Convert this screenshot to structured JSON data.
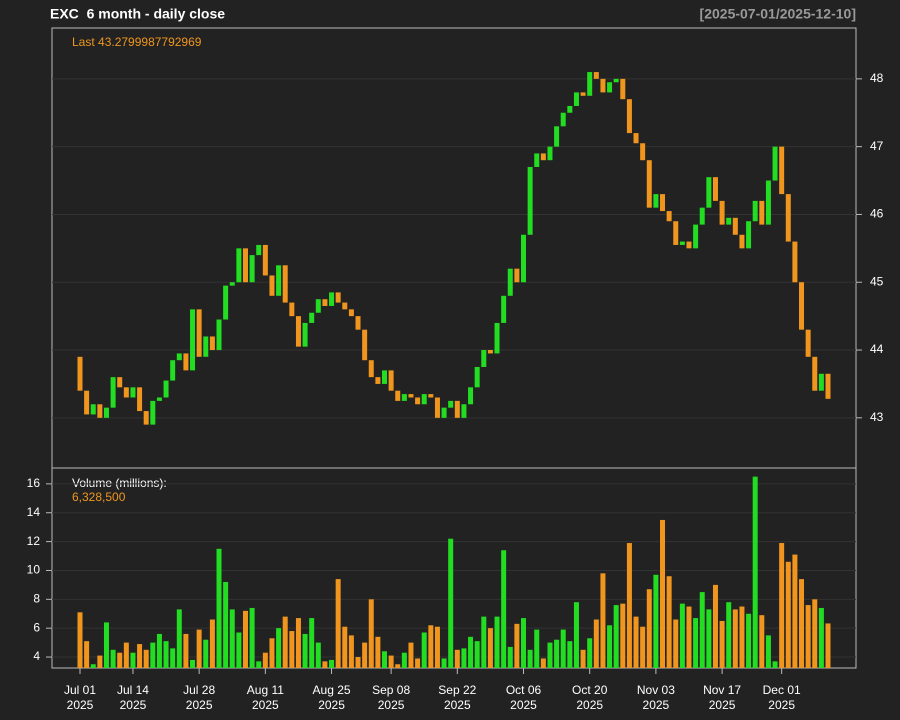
{
  "chart_data": [
    {
      "type": "candlestick",
      "title": "EXC  6 month - daily close",
      "range_label": "[2025-07-01/2025-12-10]",
      "annotation": "Last 43.2799987792969",
      "up_color": "#22dd22",
      "down_color": "#f0961e",
      "x": [
        "2025-07-01",
        "2025-07-02",
        "2025-07-03",
        "2025-07-07",
        "2025-07-08",
        "2025-07-09",
        "2025-07-10",
        "2025-07-11",
        "2025-07-14",
        "2025-07-15",
        "2025-07-16",
        "2025-07-17",
        "2025-07-18",
        "2025-07-21",
        "2025-07-22",
        "2025-07-23",
        "2025-07-24",
        "2025-07-25",
        "2025-07-28",
        "2025-07-29",
        "2025-07-30",
        "2025-07-31",
        "2025-08-01",
        "2025-08-04",
        "2025-08-05",
        "2025-08-06",
        "2025-08-07",
        "2025-08-08",
        "2025-08-11",
        "2025-08-12",
        "2025-08-13",
        "2025-08-14",
        "2025-08-15",
        "2025-08-18",
        "2025-08-19",
        "2025-08-20",
        "2025-08-21",
        "2025-08-22",
        "2025-08-25",
        "2025-08-26",
        "2025-08-27",
        "2025-08-28",
        "2025-08-29",
        "2025-09-02",
        "2025-09-03",
        "2025-09-04",
        "2025-09-05",
        "2025-09-08",
        "2025-09-09",
        "2025-09-10",
        "2025-09-11",
        "2025-09-12",
        "2025-09-15",
        "2025-09-16",
        "2025-09-17",
        "2025-09-18",
        "2025-09-19",
        "2025-09-22",
        "2025-09-23",
        "2025-09-24",
        "2025-09-25",
        "2025-09-26",
        "2025-09-29",
        "2025-09-30",
        "2025-10-01",
        "2025-10-02",
        "2025-10-03",
        "2025-10-06",
        "2025-10-07",
        "2025-10-08",
        "2025-10-09",
        "2025-10-10",
        "2025-10-13",
        "2025-10-14",
        "2025-10-15",
        "2025-10-16",
        "2025-10-17",
        "2025-10-20",
        "2025-10-21",
        "2025-10-22",
        "2025-10-23",
        "2025-10-24",
        "2025-10-27",
        "2025-10-28",
        "2025-10-29",
        "2025-10-30",
        "2025-10-31",
        "2025-11-03",
        "2025-11-04",
        "2025-11-05",
        "2025-11-06",
        "2025-11-07",
        "2025-11-10",
        "2025-11-11",
        "2025-11-12",
        "2025-11-13",
        "2025-11-14",
        "2025-11-17",
        "2025-11-18",
        "2025-11-19",
        "2025-11-20",
        "2025-11-21",
        "2025-11-24",
        "2025-11-25",
        "2025-11-26",
        "2025-11-28",
        "2025-12-01",
        "2025-12-02",
        "2025-12-03",
        "2025-12-04",
        "2025-12-05",
        "2025-12-08",
        "2025-12-09",
        "2025-12-10"
      ],
      "open": [
        43.9,
        43.4,
        43.05,
        43.2,
        43.0,
        43.15,
        43.6,
        43.45,
        43.3,
        43.45,
        43.1,
        42.9,
        43.25,
        43.3,
        43.55,
        43.85,
        43.95,
        43.7,
        44.6,
        43.9,
        44.2,
        44.0,
        44.45,
        44.95,
        45.0,
        45.5,
        45.0,
        45.4,
        45.55,
        45.1,
        44.8,
        45.25,
        44.7,
        44.5,
        44.05,
        44.4,
        44.55,
        44.75,
        44.65,
        44.85,
        44.7,
        44.6,
        44.5,
        44.3,
        43.85,
        43.6,
        43.5,
        43.7,
        43.4,
        43.25,
        43.35,
        43.3,
        43.2,
        43.35,
        43.3,
        43.0,
        43.15,
        43.25,
        43.0,
        43.2,
        43.45,
        43.75,
        44.0,
        43.95,
        44.4,
        44.8,
        45.2,
        45.0,
        45.7,
        46.7,
        46.9,
        46.8,
        47.0,
        47.3,
        47.5,
        47.6,
        47.8,
        47.75,
        48.1,
        48.0,
        47.8,
        47.95,
        48.0,
        47.7,
        47.2,
        47.05,
        46.8,
        46.1,
        46.3,
        46.05,
        45.9,
        45.55,
        45.6,
        45.5,
        45.85,
        46.1,
        46.55,
        46.2,
        45.85,
        45.95,
        45.7,
        45.5,
        45.9,
        46.2,
        45.85,
        46.5,
        47.0,
        46.3,
        45.6,
        45.0,
        44.3,
        43.9,
        43.4,
        43.65
      ],
      "close": [
        43.4,
        43.05,
        43.2,
        43.0,
        43.15,
        43.6,
        43.45,
        43.3,
        43.45,
        43.1,
        42.9,
        43.25,
        43.3,
        43.55,
        43.85,
        43.95,
        43.7,
        44.6,
        43.9,
        44.2,
        44.0,
        44.45,
        44.95,
        45.0,
        45.5,
        45.0,
        45.4,
        45.55,
        45.1,
        44.8,
        45.25,
        44.7,
        44.5,
        44.05,
        44.4,
        44.55,
        44.75,
        44.65,
        44.85,
        44.7,
        44.6,
        44.5,
        44.3,
        43.85,
        43.6,
        43.5,
        43.7,
        43.4,
        43.25,
        43.35,
        43.3,
        43.2,
        43.35,
        43.3,
        43.0,
        43.15,
        43.25,
        43.0,
        43.2,
        43.45,
        43.75,
        44.0,
        43.95,
        44.4,
        44.8,
        45.2,
        45.0,
        45.7,
        46.7,
        46.9,
        46.8,
        47.0,
        47.3,
        47.5,
        47.6,
        47.8,
        47.75,
        48.1,
        48.0,
        47.8,
        47.95,
        48.0,
        47.7,
        47.2,
        47.05,
        46.8,
        46.1,
        46.3,
        46.05,
        45.9,
        45.55,
        45.6,
        45.5,
        45.85,
        46.1,
        46.55,
        46.2,
        45.85,
        45.95,
        45.7,
        45.5,
        45.9,
        46.2,
        45.85,
        46.5,
        47.0,
        46.3,
        45.6,
        45.0,
        44.3,
        43.9,
        43.4,
        43.65,
        43.2799987792969
      ],
      "ylim": [
        42.26,
        48.75
      ],
      "yticks": [
        43,
        44,
        45,
        46,
        47,
        48
      ],
      "grid": true,
      "xticks": [
        {
          "value": "2025-07-01",
          "label": "Jul 01",
          "year": "2025"
        },
        {
          "value": "2025-07-14",
          "label": "Jul 14",
          "year": "2025"
        },
        {
          "value": "2025-07-28",
          "label": "Jul 28",
          "year": "2025"
        },
        {
          "value": "2025-08-11",
          "label": "Aug 11",
          "year": "2025"
        },
        {
          "value": "2025-08-25",
          "label": "Aug 25",
          "year": "2025"
        },
        {
          "value": "2025-09-08",
          "label": "Sep 08",
          "year": "2025"
        },
        {
          "value": "2025-09-22",
          "label": "Sep 22",
          "year": "2025"
        },
        {
          "value": "2025-10-06",
          "label": "Oct 06",
          "year": "2025"
        },
        {
          "value": "2025-10-20",
          "label": "Oct 20",
          "year": "2025"
        },
        {
          "value": "2025-11-03",
          "label": "Nov 03",
          "year": "2025"
        },
        {
          "value": "2025-11-17",
          "label": "Nov 17",
          "year": "2025"
        },
        {
          "value": "2025-12-01",
          "label": "Dec 01",
          "year": "2025"
        }
      ]
    },
    {
      "type": "bar",
      "title": "Volume (millions):",
      "annotation": "6,328,500",
      "values": [
        7.1,
        5.1,
        3.5,
        4.1,
        6.4,
        4.5,
        4.3,
        5.0,
        4.3,
        4.9,
        4.5,
        5.0,
        5.6,
        5.1,
        4.6,
        7.3,
        5.6,
        3.8,
        5.9,
        5.2,
        6.6,
        11.5,
        9.2,
        7.3,
        5.7,
        7.2,
        7.4,
        3.7,
        4.3,
        5.3,
        6.0,
        6.8,
        5.8,
        6.7,
        5.6,
        6.7,
        5.0,
        3.7,
        3.8,
        9.4,
        6.1,
        5.5,
        4.0,
        5.0,
        8.0,
        5.4,
        4.4,
        4.1,
        3.5,
        4.3,
        5.0,
        3.9,
        5.7,
        6.2,
        6.1,
        3.9,
        12.2,
        4.5,
        4.6,
        5.4,
        5.1,
        6.8,
        6.0,
        6.8,
        11.4,
        4.7,
        6.3,
        6.7,
        4.5,
        5.9,
        3.9,
        5.0,
        5.2,
        5.9,
        5.1,
        7.8,
        4.5,
        5.3,
        6.6,
        9.8,
        6.2,
        7.6,
        7.7,
        11.9,
        6.8,
        6.1,
        8.7,
        9.7,
        13.5,
        9.6,
        6.6,
        7.7,
        7.5,
        6.7,
        8.5,
        7.3,
        9.0,
        6.5,
        7.8,
        7.3,
        7.5,
        7.0,
        16.5,
        6.9,
        5.5,
        3.7,
        11.9,
        10.6,
        11.1,
        9.4,
        7.6,
        8.0,
        7.4,
        6.3285
      ],
      "ylim": [
        3.24,
        17.1
      ],
      "yticks": [
        4,
        6,
        8,
        10,
        12,
        14,
        16
      ],
      "grid": true
    }
  ]
}
